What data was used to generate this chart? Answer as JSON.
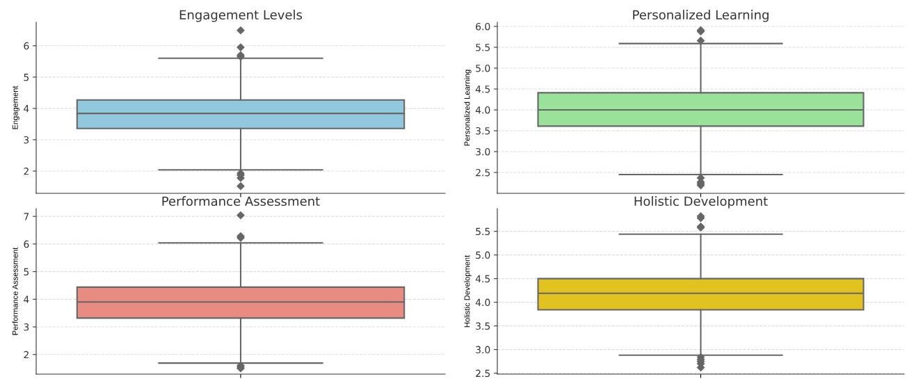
{
  "chart_data": [
    {
      "type": "box",
      "title": "Engagement Levels",
      "ylabel": "Engagement",
      "categories": [
        null
      ],
      "color": "#92c8dd",
      "marker": "diamond",
      "grid": "y",
      "ylim": [
        1.29,
        6.75
      ],
      "yticks": [
        2,
        3,
        4,
        5,
        6
      ],
      "boxes": [
        {
          "low": 2.04,
          "q1": 3.36,
          "median": 3.84,
          "q3": 4.27,
          "high": 5.6,
          "outliers": [
            6.49,
            5.95,
            5.7,
            5.65,
            1.93,
            1.87,
            1.78,
            1.52
          ]
        }
      ]
    },
    {
      "type": "box",
      "title": "Personalized Learning",
      "ylabel": "Personalized Learning",
      "categories": [
        null
      ],
      "color": "#9ae19a",
      "marker": "diamond",
      "grid": "y",
      "ylim": [
        2.0,
        6.1
      ],
      "yticks": [
        2.5,
        {
          "value": 3,
          "label": "3.0"
        },
        3.5,
        {
          "value": 4,
          "label": "4.0"
        },
        4.5,
        {
          "value": 5,
          "label": "5.0"
        },
        5.5,
        {
          "value": 6,
          "label": "6.0"
        }
      ],
      "boxes": [
        {
          "low": 2.45,
          "q1": 3.61,
          "median": 4.0,
          "q3": 4.41,
          "high": 5.59,
          "outliers": [
            5.91,
            5.88,
            5.66,
            2.37,
            2.27,
            2.23,
            2.19
          ]
        }
      ]
    },
    {
      "type": "box",
      "title": "Performance Assessment",
      "ylabel": "Performance Assessment",
      "categories": [
        null
      ],
      "color": "#e88c81",
      "marker": "diamond",
      "grid": "y",
      "ylim": [
        1.29,
        7.28
      ],
      "yticks": [
        2,
        3,
        4,
        5,
        6,
        7
      ],
      "boxes": [
        {
          "low": 1.69,
          "q1": 3.32,
          "median": 3.9,
          "q3": 4.44,
          "high": 6.04,
          "outliers": [
            7.04,
            6.28,
            6.22,
            1.6,
            1.55,
            1.5
          ]
        }
      ]
    },
    {
      "type": "box",
      "title": "Holistic Development",
      "ylabel": "Holistic Development",
      "categories": [
        null
      ],
      "color": "#e0c220",
      "marker": "diamond",
      "grid": "y",
      "ylim": [
        2.48,
        5.98
      ],
      "yticks": [
        2.5,
        {
          "value": 3,
          "label": "3.0"
        },
        3.5,
        {
          "value": 4,
          "label": "4.0"
        },
        4.5,
        {
          "value": 5,
          "label": "5.0"
        },
        5.5
      ],
      "boxes": [
        {
          "low": 2.88,
          "q1": 3.84,
          "median": 4.19,
          "q3": 4.5,
          "high": 5.44,
          "outliers": [
            5.82,
            5.78,
            5.6,
            5.58,
            2.84,
            2.79,
            2.75,
            2.7,
            2.62
          ]
        }
      ]
    }
  ]
}
